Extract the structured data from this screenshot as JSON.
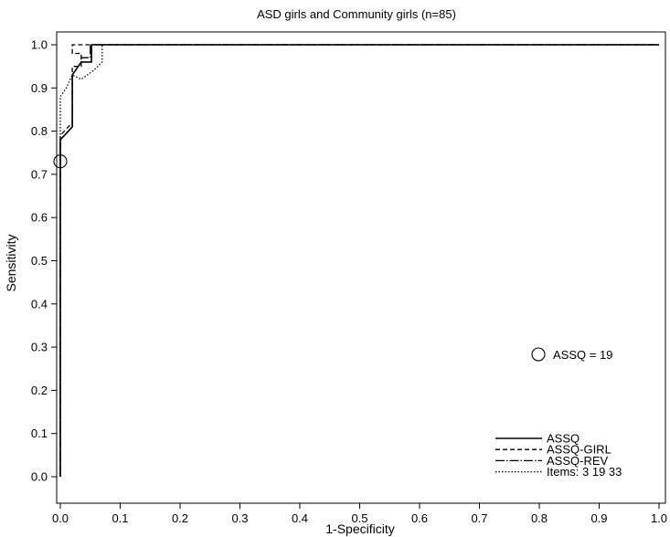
{
  "chart_data": {
    "type": "line",
    "title": "ASD girls and Community girls (n=85)",
    "xlabel": "1-Specificity",
    "ylabel": "Sensitivity",
    "xlim": [
      0,
      1
    ],
    "ylim": [
      0,
      1
    ],
    "x_ticks": [
      "0.0",
      "0.1",
      "0.2",
      "0.3",
      "0.4",
      "0.5",
      "0.6",
      "0.7",
      "0.8",
      "0.9",
      "1.0"
    ],
    "y_ticks": [
      "0.0",
      "0.1",
      "0.2",
      "0.3",
      "0.4",
      "0.5",
      "0.6",
      "0.7",
      "0.8",
      "0.9",
      "1.0"
    ],
    "grid": false,
    "legend_position": "bottom-right",
    "series": [
      {
        "name": "ASSQ",
        "style": "solid",
        "x": [
          0,
          0,
          0,
          0.02,
          0.02,
          0.035,
          0.035,
          0.052,
          0.052,
          0.052,
          1
        ],
        "y": [
          0,
          0.73,
          0.78,
          0.81,
          0.93,
          0.96,
          0.96,
          0.96,
          0.96,
          1,
          1
        ]
      },
      {
        "name": "ASSQ-GIRL",
        "style": "dashed",
        "x": [
          0,
          0,
          0,
          0.02,
          0.02,
          0.035,
          0.035,
          0.02,
          0.02,
          0.05,
          0.05,
          1
        ],
        "y": [
          0,
          0.73,
          0.79,
          0.82,
          0.95,
          0.95,
          0.98,
          0.98,
          1,
          1,
          1,
          1
        ]
      },
      {
        "name": "ASSQ-REV",
        "style": "dashdot",
        "x": [
          0,
          0,
          0,
          0.02,
          0.02,
          0.035,
          0.035,
          0.05,
          0.05,
          1
        ],
        "y": [
          0,
          0.73,
          0.78,
          0.81,
          0.93,
          0.96,
          0.97,
          0.97,
          1,
          1
        ]
      },
      {
        "name": "Items: 3 19 33",
        "style": "dotted",
        "x": [
          0,
          0,
          0,
          0.01,
          0.02,
          0.02,
          0.035,
          0.055,
          0.07,
          0.07,
          0.06,
          0.06,
          1
        ],
        "y": [
          0,
          0.75,
          0.88,
          0.9,
          0.93,
          0.93,
          0.92,
          0.94,
          0.96,
          1,
          1,
          1,
          1
        ]
      }
    ],
    "annotations": [
      {
        "label": "ASSQ = 19",
        "marker": "open-circle",
        "x": 0,
        "y": 0.73
      }
    ]
  }
}
